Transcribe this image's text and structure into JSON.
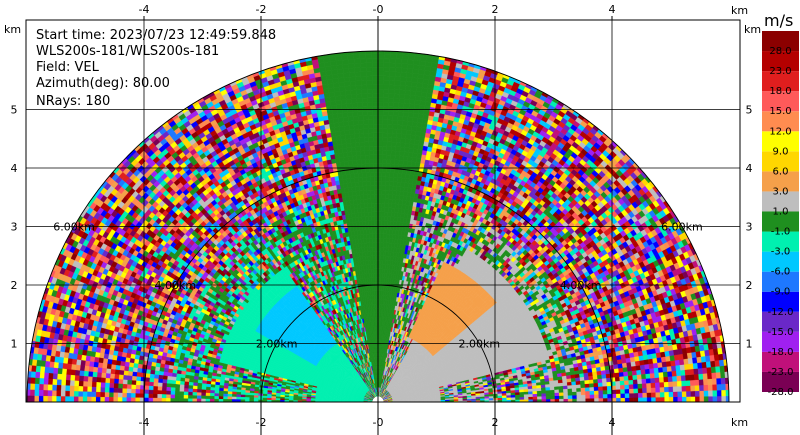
{
  "chart_data": {
    "type": "heatmap",
    "subtype": "radar-rhi-sector",
    "info": {
      "start_time": "Start time: 2023/07/23 12:49:59.848",
      "instrument": "WLS200s-181/WLS200s-181",
      "field": "Field: VEL",
      "azimuth": "Azimuth(deg): 80.00",
      "nrays": "NRays: 180"
    },
    "x_unit": "km",
    "y_unit": "km",
    "xlim": [
      -6.0,
      6.0
    ],
    "ylim": [
      0,
      6.0
    ],
    "x_ticks": [
      -4,
      -2,
      0,
      2,
      4
    ],
    "y_ticks": [
      1,
      2,
      3,
      4,
      5
    ],
    "x_tick_labels": [
      "-4",
      "-2",
      "-0",
      "2",
      "4"
    ],
    "y_tick_labels": [
      "1",
      "2",
      "3",
      "4",
      "5"
    ],
    "range_rings": [
      {
        "radius_km": 2.0,
        "label": "2.00km"
      },
      {
        "radius_km": 4.0,
        "label": "4.00km"
      },
      {
        "radius_km": 6.0,
        "label": "6.00km"
      }
    ],
    "max_range_km": 6.0,
    "grid": true,
    "colorbar": {
      "unit": "m/s",
      "placement": "right",
      "boundaries": [
        "-28.0",
        "-23.0",
        "-18.0",
        "-15.0",
        "-12.0",
        "-9.0",
        "-6.0",
        "-3.0",
        "-1.0",
        "1.0",
        "3.0",
        "6.0",
        "9.0",
        "12.0",
        "15.0",
        "18.0",
        "23.0",
        "28.0"
      ],
      "colors": [
        "#7a0054",
        "#c0107a",
        "#a020f0",
        "#6a28c8",
        "#0000ff",
        "#1e78ff",
        "#00c8ff",
        "#00f0b0",
        "#1f8f1f",
        "#bebebe",
        "#f5a04a",
        "#ffd700",
        "#ffff00",
        "#ff8c50",
        "#ff5a5a",
        "#e01e1e",
        "#b40000",
        "#8b0000"
      ]
    },
    "velocity_regions": [
      {
        "side": "left",
        "range_km": [
          0.2,
          1.0
        ],
        "elevation_deg": [
          0,
          14
        ],
        "value_ms": -2.0
      },
      {
        "side": "left",
        "range_km": [
          0.2,
          2.8
        ],
        "elevation_deg": [
          14,
          55
        ],
        "value_ms": -2.0
      },
      {
        "side": "left",
        "range_km": [
          1.2,
          2.4
        ],
        "elevation_deg": [
          30,
          55
        ],
        "value_ms": -5.0
      },
      {
        "side": "right",
        "range_km": [
          0.2,
          1.0
        ],
        "elevation_deg": [
          0,
          14
        ],
        "value_ms": 2.0
      },
      {
        "side": "right",
        "range_km": [
          0.2,
          3.0
        ],
        "elevation_deg": [
          14,
          60
        ],
        "value_ms": 2.0
      },
      {
        "side": "right",
        "range_km": [
          1.2,
          2.6
        ],
        "elevation_deg": [
          40,
          65
        ],
        "value_ms": 4.0
      },
      {
        "side": "center",
        "range_km": [
          0.2,
          6.0
        ],
        "elevation_deg": [
          80,
          100
        ],
        "value_ms": 0.0
      }
    ]
  }
}
